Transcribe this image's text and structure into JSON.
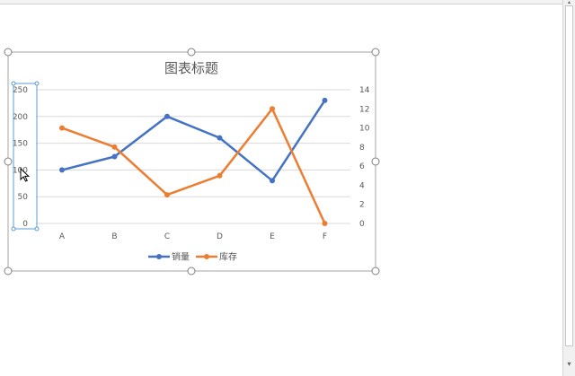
{
  "chart_data": {
    "type": "line",
    "title": "图表标题",
    "categories": [
      "A",
      "B",
      "C",
      "D",
      "E",
      "F"
    ],
    "series": [
      {
        "name": "销量",
        "axis": "left",
        "color": "#4472c4",
        "values": [
          100,
          125,
          200,
          160,
          80,
          230
        ]
      },
      {
        "name": "库存",
        "axis": "right",
        "color": "#ed7d31",
        "values": [
          10,
          8,
          3,
          5,
          12,
          0
        ]
      }
    ],
    "ylim": [
      0,
      250
    ],
    "y_ticks": [
      "0",
      "50",
      "100",
      "150",
      "200",
      "250"
    ],
    "y2lim": [
      0,
      14
    ],
    "y2_ticks": [
      "0",
      "2",
      "4",
      "6",
      "8",
      "10",
      "12",
      "14"
    ],
    "grid": true,
    "legend": "bottom"
  },
  "colors": {
    "selection_handle": "#7f7f7f",
    "axis_selection": "#5b9bd5",
    "gridline": "#d9d9d9"
  }
}
